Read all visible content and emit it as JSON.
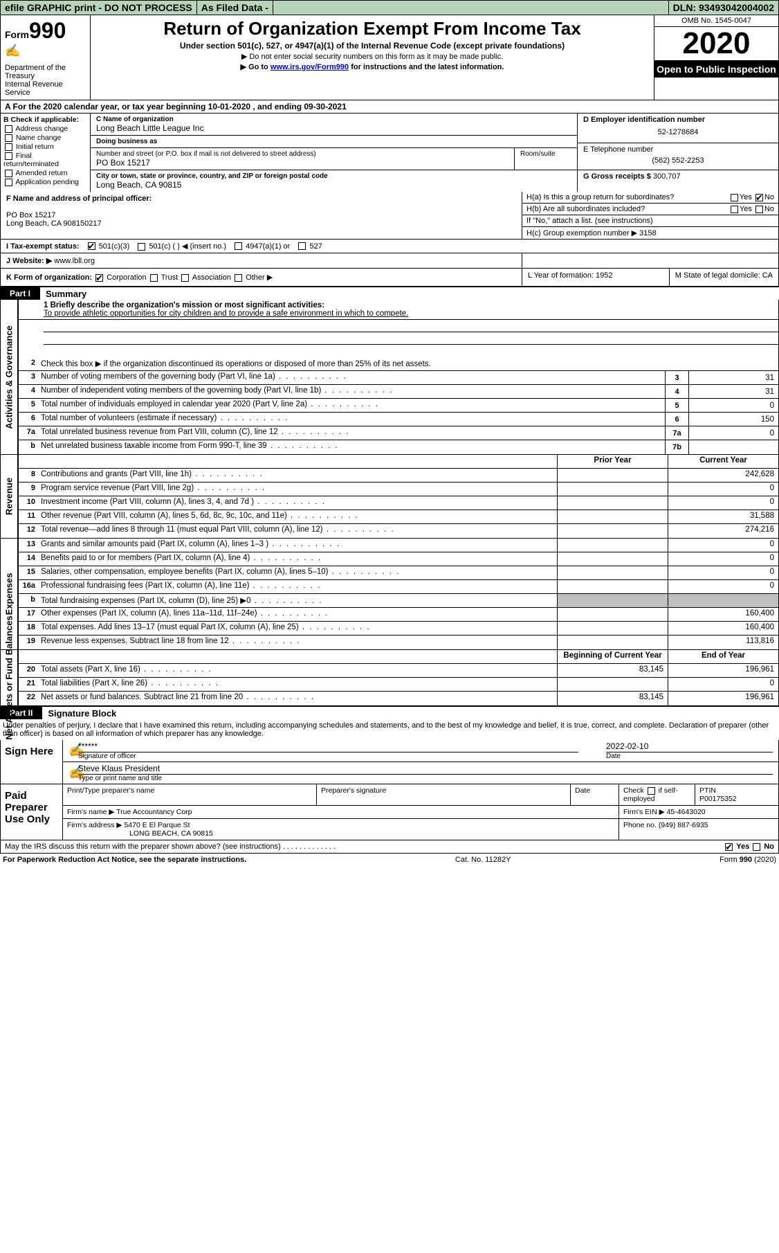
{
  "topbar": {
    "efile": "efile GRAPHIC print - DO NOT PROCESS",
    "asfiled": "As Filed Data -",
    "dln": "DLN: 93493042004002"
  },
  "header": {
    "formprefix": "Form",
    "formnum": "990",
    "dept": "Department of the Treasury",
    "irs": "Internal Revenue Service",
    "title": "Return of Organization Exempt From Income Tax",
    "sub": "Under section 501(c), 527, or 4947(a)(1) of the Internal Revenue Code (except private foundations)",
    "note1": "▶ Do not enter social security numbers on this form as it may be made public.",
    "note2_pre": "▶ Go to ",
    "note2_link": "www.irs.gov/Form990",
    "note2_post": " for instructions and the latest information.",
    "omb": "OMB No. 1545-0047",
    "year": "2020",
    "open": "Open to Public Inspection"
  },
  "rowA": "A  For the 2020 calendar year, or tax year beginning 10-01-2020   , and ending 09-30-2021",
  "boxB": {
    "h": "B Check if applicable:",
    "items": [
      "Address change",
      "Name change",
      "Initial return",
      "Final return/terminated",
      "Amended return",
      "Application pending"
    ]
  },
  "boxC": {
    "name_lbl": "C Name of organization",
    "name": "Long Beach Little League Inc",
    "dba_lbl": "Doing business as",
    "dba": "",
    "addr_lbl": "Number and street (or P.O. box if mail is not delivered to street address)",
    "room_lbl": "Room/suite",
    "addr": "PO Box 15217",
    "city_lbl": "City or town, state or province, country, and ZIP or foreign postal code",
    "city": "Long Beach, CA  90815"
  },
  "boxD": {
    "lbl": "D Employer identification number",
    "val": "52-1278684"
  },
  "boxE": {
    "lbl": "E Telephone number",
    "val": "(562) 552-2253"
  },
  "boxG": {
    "lbl": "G Gross receipts $",
    "val": "300,707"
  },
  "boxF": {
    "lbl": "F  Name and address of principal officer:",
    "l1": "PO Box 15217",
    "l2": "Long Beach, CA  908150217"
  },
  "boxH": {
    "ha": "H(a)  Is this a group return for subordinates?",
    "ha_yes": "Yes",
    "ha_no": "No",
    "hb": "H(b)  Are all subordinates included?",
    "hb_yes": "Yes",
    "hb_no": "No",
    "hb_note": "If \"No,\" attach a list. (see instructions)",
    "hc": "H(c)  Group exemption number ▶   3158"
  },
  "rowI": {
    "lbl": "I   Tax-exempt status:",
    "o1": "501(c)(3)",
    "o2": "501(c) (   ) ◀ (insert no.)",
    "o3": "4947(a)(1) or",
    "o4": "527"
  },
  "rowJ": {
    "lbl": "J  Website: ▶",
    "val": "www.lbll.org"
  },
  "rowK": {
    "lbl": "K Form of organization:",
    "o1": "Corporation",
    "o2": "Trust",
    "o3": "Association",
    "o4": "Other ▶",
    "L": "L Year of formation: 1952",
    "M": "M State of legal domicile: CA"
  },
  "part1": {
    "bar": "Part I",
    "title": "Summary"
  },
  "summary": {
    "l1_lbl": "1 Briefly describe the organization's mission or most significant activities:",
    "l1_val": "To provide athletic opportunities for city children and to provide a safe environment in which to compete.",
    "l2_lbl": "Check this box ▶      if the organization discontinued its operations or disposed of more than 25% of its net assets.",
    "rows": [
      {
        "n": "2",
        "t": "",
        "id": "",
        "v": ""
      },
      {
        "n": "3",
        "t": "Number of voting members of the governing body (Part VI, line 1a)",
        "id": "3",
        "v": "31"
      },
      {
        "n": "4",
        "t": "Number of independent voting members of the governing body (Part VI, line 1b)",
        "id": "4",
        "v": "31"
      },
      {
        "n": "5",
        "t": "Total number of individuals employed in calendar year 2020 (Part V, line 2a)",
        "id": "5",
        "v": "0"
      },
      {
        "n": "6",
        "t": "Total number of volunteers (estimate if necessary)",
        "id": "6",
        "v": "150"
      },
      {
        "n": "7a",
        "t": "Total unrelated business revenue from Part VIII, column (C), line 12",
        "id": "7a",
        "v": "0"
      },
      {
        "n": "b",
        "t": "Net unrelated business taxable income from Form 990-T, line 39",
        "id": "7b",
        "v": ""
      }
    ]
  },
  "revenue": {
    "hdr_py": "Prior Year",
    "hdr_cy": "Current Year",
    "rows": [
      {
        "n": "8",
        "t": "Contributions and grants (Part VIII, line 1h)",
        "py": "",
        "cy": "242,628"
      },
      {
        "n": "9",
        "t": "Program service revenue (Part VIII, line 2g)",
        "py": "",
        "cy": "0"
      },
      {
        "n": "10",
        "t": "Investment income (Part VIII, column (A), lines 3, 4, and 7d )",
        "py": "",
        "cy": "0"
      },
      {
        "n": "11",
        "t": "Other revenue (Part VIII, column (A), lines 5, 6d, 8c, 9c, 10c, and 11e)",
        "py": "",
        "cy": "31,588"
      },
      {
        "n": "12",
        "t": "Total revenue—add lines 8 through 11 (must equal Part VIII, column (A), line 12)",
        "py": "",
        "cy": "274,216"
      }
    ]
  },
  "expenses": {
    "rows": [
      {
        "n": "13",
        "t": "Grants and similar amounts paid (Part IX, column (A), lines 1–3 )",
        "py": "",
        "cy": "0"
      },
      {
        "n": "14",
        "t": "Benefits paid to or for members (Part IX, column (A), line 4)",
        "py": "",
        "cy": "0"
      },
      {
        "n": "15",
        "t": "Salaries, other compensation, employee benefits (Part IX, column (A), lines 5–10)",
        "py": "",
        "cy": "0"
      },
      {
        "n": "16a",
        "t": "Professional fundraising fees (Part IX, column (A), line 11e)",
        "py": "",
        "cy": "0"
      },
      {
        "n": "b",
        "t": "Total fundraising expenses (Part IX, column (D), line 25) ▶0",
        "py": "shaded",
        "cy": "shaded"
      },
      {
        "n": "17",
        "t": "Other expenses (Part IX, column (A), lines 11a–11d, 11f–24e)",
        "py": "",
        "cy": "160,400"
      },
      {
        "n": "18",
        "t": "Total expenses. Add lines 13–17 (must equal Part IX, column (A), line 25)",
        "py": "",
        "cy": "160,400"
      },
      {
        "n": "19",
        "t": "Revenue less expenses. Subtract line 18 from line 12",
        "py": "",
        "cy": "113,816"
      }
    ]
  },
  "netassets": {
    "hdr_py": "Beginning of Current Year",
    "hdr_cy": "End of Year",
    "rows": [
      {
        "n": "20",
        "t": "Total assets (Part X, line 16)",
        "py": "83,145",
        "cy": "196,961"
      },
      {
        "n": "21",
        "t": "Total liabilities (Part X, line 26)",
        "py": "",
        "cy": "0"
      },
      {
        "n": "22",
        "t": "Net assets or fund balances. Subtract line 21 from line 20",
        "py": "83,145",
        "cy": "196,961"
      }
    ]
  },
  "sidelabels": {
    "ag": "Activities & Governance",
    "rev": "Revenue",
    "exp": "Expenses",
    "na": "Net Assets or Fund Balances"
  },
  "part2": {
    "bar": "Part II",
    "title": "Signature Block"
  },
  "penalty": "Under penalties of perjury, I declare that I have examined this return, including accompanying schedules and statements, and to the best of my knowledge and belief, it is true, correct, and complete. Declaration of preparer (other than officer) is based on all information of which preparer has any knowledge.",
  "sign": {
    "label": "Sign Here",
    "stars": "******",
    "sig_lbl": "Signature of officer",
    "date": "2022-02-10",
    "date_lbl": "Date",
    "name": "Steve Klaus President",
    "name_lbl": "Type or print name and title"
  },
  "prep": {
    "label": "Paid Preparer Use Only",
    "h1": "Print/Type preparer's name",
    "h2": "Preparer's signature",
    "h3": "Date",
    "h4_pre": "Check",
    "h4_post": "if self-employed",
    "h5": "PTIN",
    "ptin": "P00175352",
    "firm_lbl": "Firm's name   ▶",
    "firm": "True Accountancy Corp",
    "ein_lbl": "Firm's EIN ▶",
    "ein": "45-4643020",
    "addr_lbl": "Firm's address ▶",
    "addr1": "5470 E El Parque St",
    "addr2": "LONG BEACH, CA  90815",
    "phone_lbl": "Phone no.",
    "phone": "(949) 887-6935"
  },
  "discuss": {
    "q": "May the IRS discuss this return with the preparer shown above? (see instructions)",
    "yes": "Yes",
    "no": "No"
  },
  "footer": {
    "left": "For Paperwork Reduction Act Notice, see the separate instructions.",
    "mid": "Cat. No. 11282Y",
    "right_pre": "Form ",
    "right_bold": "990",
    "right_post": " (2020)"
  }
}
